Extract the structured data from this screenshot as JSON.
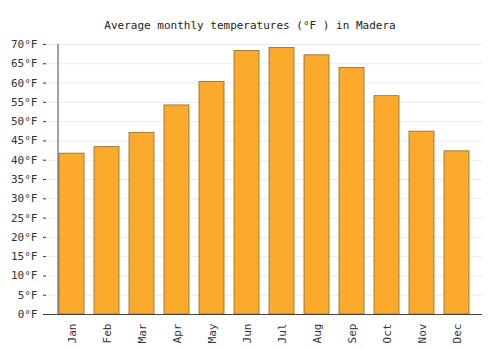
{
  "chart_data": {
    "type": "bar",
    "title": "Average monthly temperatures (°F ) in Madera",
    "categories": [
      "Jan",
      "Feb",
      "Mar",
      "Apr",
      "May",
      "Jun",
      "Jul",
      "Aug",
      "Sep",
      "Oct",
      "Nov",
      "Dec"
    ],
    "values": [
      41.7,
      43.4,
      47.1,
      54.2,
      60.3,
      68.3,
      69.1,
      67.2,
      63.9,
      56.6,
      47.4,
      42.3
    ],
    "color": "#fbaa2c",
    "ylim": [
      0,
      70
    ],
    "yticks": [
      {
        "value": 0,
        "label": "0°F"
      },
      {
        "value": 5,
        "label": "5°F"
      },
      {
        "value": 10,
        "label": "10°F"
      },
      {
        "value": 15,
        "label": "15°F"
      },
      {
        "value": 20,
        "label": "20°F"
      },
      {
        "value": 25,
        "label": "25°F"
      },
      {
        "value": 30,
        "label": "30°F"
      },
      {
        "value": 35,
        "label": "35°F"
      },
      {
        "value": 40,
        "label": "40°F"
      },
      {
        "value": 45,
        "label": "45°F"
      },
      {
        "value": 50,
        "label": "50°F"
      },
      {
        "value": 55,
        "label": "55°F"
      },
      {
        "value": 60,
        "label": "60°F"
      },
      {
        "value": 65,
        "label": "65°F"
      },
      {
        "value": 70,
        "label": "70°F"
      }
    ],
    "grid": true
  }
}
